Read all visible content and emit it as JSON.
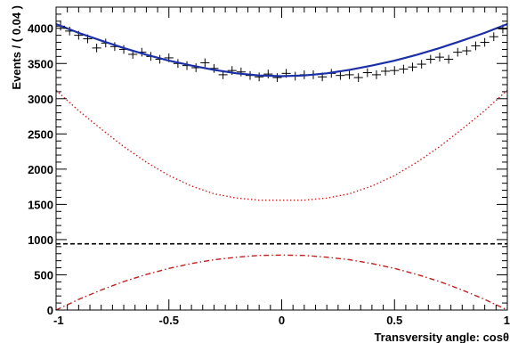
{
  "chart_data": {
    "type": "scatter",
    "xlabel": "Transversity angle: cosθ",
    "ylabel": "Events / ( 0.04 )",
    "xlim": [
      -1,
      1
    ],
    "ylim": [
      0,
      4300
    ],
    "x_ticks": [
      -1,
      -0.5,
      0,
      0.5,
      1
    ],
    "x_tick_labels": [
      "-1",
      "-0.5",
      "0",
      "0.5",
      "1"
    ],
    "y_ticks": [
      0,
      500,
      1000,
      1500,
      2000,
      2500,
      3000,
      3500,
      4000
    ],
    "y_tick_labels": [
      "0",
      "500",
      "1000",
      "1500",
      "2000",
      "2500",
      "3000",
      "3500",
      "4000"
    ],
    "grid": false,
    "legend": "none",
    "series": [
      {
        "style": "data-points-with-error-bars",
        "color": "#000000",
        "x": [
          -0.98,
          -0.94,
          -0.9,
          -0.86,
          -0.82,
          -0.78,
          -0.74,
          -0.7,
          -0.66,
          -0.62,
          -0.58,
          -0.54,
          -0.5,
          -0.46,
          -0.42,
          -0.38,
          -0.34,
          -0.3,
          -0.26,
          -0.22,
          -0.18,
          -0.14,
          -0.1,
          -0.06,
          -0.02,
          0.02,
          0.06,
          0.1,
          0.14,
          0.18,
          0.22,
          0.26,
          0.3,
          0.34,
          0.38,
          0.42,
          0.46,
          0.5,
          0.54,
          0.58,
          0.62,
          0.66,
          0.7,
          0.74,
          0.78,
          0.82,
          0.86,
          0.9,
          0.94,
          0.98
        ],
        "y": [
          4030,
          3960,
          3900,
          3850,
          3720,
          3790,
          3740,
          3700,
          3630,
          3660,
          3600,
          3560,
          3580,
          3500,
          3470,
          3440,
          3510,
          3430,
          3340,
          3400,
          3380,
          3330,
          3310,
          3350,
          3300,
          3360,
          3320,
          3340,
          3340,
          3310,
          3360,
          3330,
          3340,
          3300,
          3370,
          3340,
          3390,
          3400,
          3420,
          3450,
          3490,
          3560,
          3590,
          3560,
          3660,
          3680,
          3750,
          3800,
          3880,
          3990
        ],
        "yerr": 62
      },
      {
        "style": "solid-line",
        "color": "#1a2fa8",
        "x": [
          -1,
          -0.9,
          -0.8,
          -0.7,
          -0.6,
          -0.5,
          -0.4,
          -0.3,
          -0.2,
          -0.1,
          0,
          0.1,
          0.2,
          0.3,
          0.4,
          0.5,
          0.6,
          0.7,
          0.8,
          0.9,
          1
        ],
        "y": [
          4060,
          3935,
          3825,
          3720,
          3625,
          3540,
          3470,
          3410,
          3360,
          3330,
          3320,
          3330,
          3360,
          3410,
          3470,
          3540,
          3625,
          3720,
          3825,
          3935,
          4060
        ]
      },
      {
        "style": "dotted-line",
        "color": "#d02020",
        "x": [
          -1,
          -0.9,
          -0.8,
          -0.7,
          -0.6,
          -0.5,
          -0.4,
          -0.3,
          -0.2,
          -0.1,
          0,
          0.1,
          0.2,
          0.3,
          0.4,
          0.5,
          0.6,
          0.7,
          0.8,
          0.9,
          1
        ],
        "y": [
          3120,
          2830,
          2570,
          2320,
          2100,
          1910,
          1760,
          1650,
          1590,
          1560,
          1560,
          1560,
          1590,
          1650,
          1760,
          1910,
          2100,
          2320,
          2570,
          2830,
          3120
        ]
      },
      {
        "style": "dashed-line",
        "color": "#000000",
        "x": [
          -1,
          1
        ],
        "y": [
          940,
          940
        ]
      },
      {
        "style": "dash-dot-line",
        "color": "#c02020",
        "x": [
          -1,
          -0.9,
          -0.8,
          -0.7,
          -0.6,
          -0.5,
          -0.4,
          -0.3,
          -0.2,
          -0.1,
          0,
          0.1,
          0.2,
          0.3,
          0.4,
          0.5,
          0.6,
          0.7,
          0.8,
          0.9,
          1
        ],
        "y": [
          0,
          150,
          285,
          405,
          505,
          590,
          660,
          715,
          750,
          775,
          780,
          775,
          750,
          715,
          660,
          590,
          505,
          405,
          285,
          150,
          0
        ]
      }
    ]
  }
}
